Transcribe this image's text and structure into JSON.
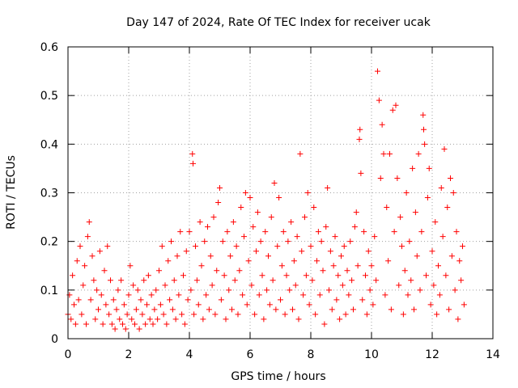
{
  "chart_data": {
    "type": "scatter",
    "title": "Day 147 of 2024, Rate Of TEC Index for receiver ucak",
    "xlabel": "GPS time / hours",
    "ylabel": "ROTI / TECUs",
    "xlim": [
      0,
      14
    ],
    "ylim": [
      0,
      0.6
    ],
    "x_ticks": [
      "0",
      "2",
      "4",
      "6",
      "8",
      "10",
      "12",
      "14"
    ],
    "y_ticks": [
      "0",
      "0.1",
      "0.2",
      "0.3",
      "0.4",
      "0.5",
      "0.6"
    ],
    "grid": true,
    "marker": "+",
    "color": "#ff0000",
    "series": [
      {
        "values": [
          [
            0.0,
            0.05
          ],
          [
            0.05,
            0.09
          ],
          [
            0.1,
            0.04
          ],
          [
            0.15,
            0.13
          ],
          [
            0.2,
            0.07
          ],
          [
            0.25,
            0.03
          ],
          [
            0.3,
            0.16
          ],
          [
            0.35,
            0.08
          ],
          [
            0.4,
            0.19
          ],
          [
            0.45,
            0.05
          ],
          [
            0.5,
            0.11
          ],
          [
            0.55,
            0.15
          ],
          [
            0.6,
            0.03
          ],
          [
            0.65,
            0.21
          ],
          [
            0.7,
            0.24
          ],
          [
            0.75,
            0.08
          ],
          [
            0.8,
            0.17
          ],
          [
            0.85,
            0.12
          ],
          [
            0.9,
            0.04
          ],
          [
            0.95,
            0.1
          ],
          [
            1.0,
            0.06
          ],
          [
            1.05,
            0.18
          ],
          [
            1.1,
            0.09
          ],
          [
            1.15,
            0.03
          ],
          [
            1.2,
            0.14
          ],
          [
            1.25,
            0.07
          ],
          [
            1.3,
            0.19
          ],
          [
            1.35,
            0.05
          ],
          [
            1.4,
            0.12
          ],
          [
            1.45,
            0.03
          ],
          [
            1.5,
            0.08
          ],
          [
            1.55,
            0.02
          ],
          [
            1.6,
            0.06
          ],
          [
            1.65,
            0.1
          ],
          [
            1.7,
            0.04
          ],
          [
            1.75,
            0.12
          ],
          [
            1.8,
            0.03
          ],
          [
            1.85,
            0.07
          ],
          [
            1.9,
            0.02
          ],
          [
            1.95,
            0.05
          ],
          [
            2.0,
            0.09
          ],
          [
            2.05,
            0.15
          ],
          [
            2.1,
            0.04
          ],
          [
            2.15,
            0.11
          ],
          [
            2.2,
            0.03
          ],
          [
            2.25,
            0.06
          ],
          [
            2.3,
            0.1
          ],
          [
            2.35,
            0.02
          ],
          [
            2.4,
            0.08
          ],
          [
            2.45,
            0.05
          ],
          [
            2.5,
            0.12
          ],
          [
            2.55,
            0.03
          ],
          [
            2.6,
            0.07
          ],
          [
            2.65,
            0.13
          ],
          [
            2.7,
            0.04
          ],
          [
            2.75,
            0.09
          ],
          [
            2.8,
            0.03
          ],
          [
            2.85,
            0.06
          ],
          [
            2.9,
            0.1
          ],
          [
            2.95,
            0.04
          ],
          [
            3.0,
            0.14
          ],
          [
            3.05,
            0.07
          ],
          [
            3.1,
            0.19
          ],
          [
            3.15,
            0.05
          ],
          [
            3.2,
            0.11
          ],
          [
            3.25,
            0.03
          ],
          [
            3.3,
            0.16
          ],
          [
            3.35,
            0.08
          ],
          [
            3.4,
            0.2
          ],
          [
            3.45,
            0.06
          ],
          [
            3.5,
            0.12
          ],
          [
            3.55,
            0.04
          ],
          [
            3.6,
            0.17
          ],
          [
            3.65,
            0.09
          ],
          [
            3.7,
            0.22
          ],
          [
            3.75,
            0.05
          ],
          [
            3.8,
            0.13
          ],
          [
            3.85,
            0.03
          ],
          [
            3.9,
            0.18
          ],
          [
            3.95,
            0.08
          ],
          [
            4.0,
            0.22
          ],
          [
            4.05,
            0.1
          ],
          [
            4.1,
            0.38
          ],
          [
            4.12,
            0.36
          ],
          [
            4.15,
            0.05
          ],
          [
            4.2,
            0.19
          ],
          [
            4.25,
            0.12
          ],
          [
            4.3,
            0.07
          ],
          [
            4.35,
            0.24
          ],
          [
            4.4,
            0.15
          ],
          [
            4.45,
            0.04
          ],
          [
            4.5,
            0.2
          ],
          [
            4.55,
            0.09
          ],
          [
            4.6,
            0.23
          ],
          [
            4.65,
            0.06
          ],
          [
            4.7,
            0.17
          ],
          [
            4.75,
            0.11
          ],
          [
            4.8,
            0.25
          ],
          [
            4.85,
            0.05
          ],
          [
            4.9,
            0.14
          ],
          [
            4.95,
            0.28
          ],
          [
            5.0,
            0.31
          ],
          [
            5.05,
            0.08
          ],
          [
            5.1,
            0.2
          ],
          [
            5.15,
            0.13
          ],
          [
            5.2,
            0.04
          ],
          [
            5.25,
            0.22
          ],
          [
            5.3,
            0.1
          ],
          [
            5.35,
            0.17
          ],
          [
            5.4,
            0.06
          ],
          [
            5.45,
            0.24
          ],
          [
            5.5,
            0.12
          ],
          [
            5.55,
            0.19
          ],
          [
            5.6,
            0.05
          ],
          [
            5.65,
            0.14
          ],
          [
            5.7,
            0.27
          ],
          [
            5.75,
            0.09
          ],
          [
            5.8,
            0.21
          ],
          [
            5.85,
            0.3
          ],
          [
            5.9,
            0.07
          ],
          [
            5.95,
            0.16
          ],
          [
            6.0,
            0.29
          ],
          [
            6.05,
            0.11
          ],
          [
            6.1,
            0.23
          ],
          [
            6.15,
            0.05
          ],
          [
            6.2,
            0.18
          ],
          [
            6.25,
            0.26
          ],
          [
            6.3,
            0.09
          ],
          [
            6.35,
            0.2
          ],
          [
            6.4,
            0.13
          ],
          [
            6.45,
            0.04
          ],
          [
            6.5,
            0.22
          ],
          [
            6.55,
            0.1
          ],
          [
            6.6,
            0.17
          ],
          [
            6.65,
            0.07
          ],
          [
            6.7,
            0.25
          ],
          [
            6.75,
            0.12
          ],
          [
            6.8,
            0.32
          ],
          [
            6.85,
            0.06
          ],
          [
            6.9,
            0.19
          ],
          [
            6.95,
            0.29
          ],
          [
            7.0,
            0.08
          ],
          [
            7.05,
            0.15
          ],
          [
            7.1,
            0.22
          ],
          [
            7.15,
            0.05
          ],
          [
            7.2,
            0.13
          ],
          [
            7.25,
            0.2
          ],
          [
            7.3,
            0.1
          ],
          [
            7.35,
            0.24
          ],
          [
            7.4,
            0.06
          ],
          [
            7.45,
            0.16
          ],
          [
            7.5,
            0.11
          ],
          [
            7.55,
            0.21
          ],
          [
            7.6,
            0.04
          ],
          [
            7.65,
            0.38
          ],
          [
            7.7,
            0.18
          ],
          [
            7.75,
            0.09
          ],
          [
            7.8,
            0.25
          ],
          [
            7.85,
            0.13
          ],
          [
            7.9,
            0.3
          ],
          [
            7.95,
            0.07
          ],
          [
            8.0,
            0.19
          ],
          [
            8.05,
            0.12
          ],
          [
            8.1,
            0.27
          ],
          [
            8.15,
            0.05
          ],
          [
            8.2,
            0.16
          ],
          [
            8.25,
            0.22
          ],
          [
            8.3,
            0.09
          ],
          [
            8.35,
            0.2
          ],
          [
            8.4,
            0.14
          ],
          [
            8.45,
            0.03
          ],
          [
            8.5,
            0.23
          ],
          [
            8.55,
            0.31
          ],
          [
            8.6,
            0.1
          ],
          [
            8.65,
            0.18
          ],
          [
            8.7,
            0.06
          ],
          [
            8.75,
            0.15
          ],
          [
            8.8,
            0.21
          ],
          [
            8.85,
            0.08
          ],
          [
            8.9,
            0.13
          ],
          [
            8.95,
            0.04
          ],
          [
            9.0,
            0.17
          ],
          [
            9.05,
            0.11
          ],
          [
            9.1,
            0.19
          ],
          [
            9.15,
            0.05
          ],
          [
            9.2,
            0.14
          ],
          [
            9.25,
            0.09
          ],
          [
            9.3,
            0.2
          ],
          [
            9.35,
            0.12
          ],
          [
            9.4,
            0.06
          ],
          [
            9.45,
            0.23
          ],
          [
            9.5,
            0.26
          ],
          [
            9.55,
            0.15
          ],
          [
            9.6,
            0.41
          ],
          [
            9.62,
            0.43
          ],
          [
            9.65,
            0.34
          ],
          [
            9.7,
            0.08
          ],
          [
            9.75,
            0.22
          ],
          [
            9.8,
            0.13
          ],
          [
            9.85,
            0.05
          ],
          [
            9.9,
            0.18
          ],
          [
            9.95,
            0.1
          ],
          [
            10.0,
            0.15
          ],
          [
            10.05,
            0.07
          ],
          [
            10.1,
            0.21
          ],
          [
            10.15,
            0.12
          ],
          [
            10.2,
            0.55
          ],
          [
            10.25,
            0.49
          ],
          [
            10.3,
            0.33
          ],
          [
            10.35,
            0.44
          ],
          [
            10.4,
            0.38
          ],
          [
            10.45,
            0.09
          ],
          [
            10.5,
            0.27
          ],
          [
            10.55,
            0.16
          ],
          [
            10.6,
            0.38
          ],
          [
            10.65,
            0.06
          ],
          [
            10.7,
            0.47
          ],
          [
            10.75,
            0.22
          ],
          [
            10.8,
            0.48
          ],
          [
            10.85,
            0.33
          ],
          [
            10.9,
            0.11
          ],
          [
            10.95,
            0.25
          ],
          [
            11.0,
            0.19
          ],
          [
            11.05,
            0.05
          ],
          [
            11.1,
            0.14
          ],
          [
            11.15,
            0.3
          ],
          [
            11.2,
            0.09
          ],
          [
            11.25,
            0.2
          ],
          [
            11.3,
            0.12
          ],
          [
            11.35,
            0.35
          ],
          [
            11.4,
            0.06
          ],
          [
            11.45,
            0.26
          ],
          [
            11.5,
            0.17
          ],
          [
            11.55,
            0.38
          ],
          [
            11.6,
            0.1
          ],
          [
            11.65,
            0.22
          ],
          [
            11.7,
            0.46
          ],
          [
            11.72,
            0.43
          ],
          [
            11.75,
            0.4
          ],
          [
            11.8,
            0.13
          ],
          [
            11.85,
            0.29
          ],
          [
            11.9,
            0.35
          ],
          [
            11.95,
            0.07
          ],
          [
            12.0,
            0.18
          ],
          [
            12.05,
            0.11
          ],
          [
            12.1,
            0.24
          ],
          [
            12.15,
            0.05
          ],
          [
            12.2,
            0.15
          ],
          [
            12.25,
            0.09
          ],
          [
            12.3,
            0.31
          ],
          [
            12.35,
            0.21
          ],
          [
            12.4,
            0.39
          ],
          [
            12.45,
            0.13
          ],
          [
            12.5,
            0.27
          ],
          [
            12.55,
            0.06
          ],
          [
            12.6,
            0.33
          ],
          [
            12.65,
            0.17
          ],
          [
            12.7,
            0.3
          ],
          [
            12.75,
            0.1
          ],
          [
            12.8,
            0.22
          ],
          [
            12.85,
            0.04
          ],
          [
            12.9,
            0.16
          ],
          [
            12.95,
            0.12
          ],
          [
            13.0,
            0.19
          ],
          [
            13.05,
            0.07
          ]
        ]
      }
    ]
  }
}
